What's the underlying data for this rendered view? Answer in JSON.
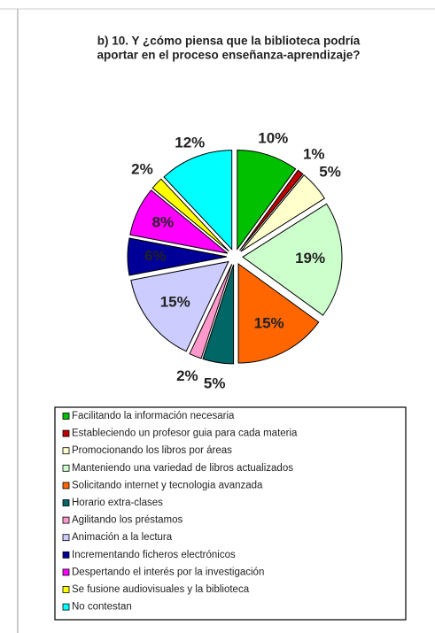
{
  "chart_data": {
    "type": "pie",
    "title": [
      "b) 10.  Y ¿cómo piensa que la biblioteca podría",
      "aportar en el proceso enseñanza-aprendizaje?"
    ],
    "categories": [
      "Facilitando la información necesaria",
      "Estableciendo un profesor guia para cada materia",
      "Promocionando los libros por áreas",
      "Manteniendo una variedad de libros actualizados",
      "Solicitando internet y tecnologia avanzada",
      "Horario extra-clases",
      "Agilitando los préstamos",
      "Animación a la lectura",
      "Incrementando ficheros electrónicos",
      "Despertando el interés por la investigación",
      "Se fusione audiovisuales  y la biblioteca",
      "No contestan"
    ],
    "values": [
      10,
      1,
      5,
      19,
      15,
      5,
      2,
      15,
      6,
      8,
      2,
      12
    ],
    "value_labels": [
      "10%",
      "1%",
      "5%",
      "19%",
      "15%",
      "5%",
      "2%",
      "15%",
      "6%",
      "8%",
      "2%",
      "12%"
    ],
    "colors": [
      "#00c000",
      "#c00000",
      "#ffffcc",
      "#ccffcc",
      "#ff6600",
      "#006666",
      "#ff99cc",
      "#ccccff",
      "#000099",
      "#ff00ff",
      "#ffff00",
      "#00ffff"
    ],
    "legend": "bottom"
  }
}
